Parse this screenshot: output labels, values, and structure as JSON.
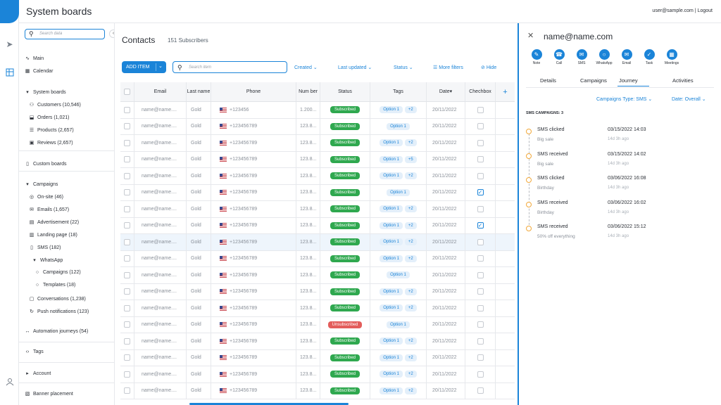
{
  "app": {
    "title": "System boards",
    "user": "user@sample.com | Logout"
  },
  "sidebar": {
    "search_placeholder": "Search data",
    "items": [
      {
        "label": "Main",
        "icon": "pulse-icon"
      },
      {
        "label": "Calendar",
        "icon": "calendar-icon"
      },
      {
        "label": "System boards",
        "icon": "caret-down-icon"
      },
      {
        "label": "Customers (10,546)",
        "icon": "users-icon"
      },
      {
        "label": "Orders (1,021)",
        "icon": "cart-icon"
      },
      {
        "label": "Products (2,657)",
        "icon": "list-icon"
      },
      {
        "label": "Reviews (2,657)",
        "icon": "review-icon"
      },
      {
        "label": "Custom boards",
        "icon": "board-icon"
      },
      {
        "label": "Campaigns",
        "icon": "caret-down-icon"
      },
      {
        "label": "On-site (46)",
        "icon": "target-icon"
      },
      {
        "label": "Emails (1,657)",
        "icon": "mail-icon"
      },
      {
        "label": "Advertisement (22)",
        "icon": "ad-icon"
      },
      {
        "label": "Landing page (18)",
        "icon": "page-icon"
      },
      {
        "label": "SMS (182)",
        "icon": "phone-icon"
      },
      {
        "label": "WhatsApp",
        "icon": "caret-down-icon"
      },
      {
        "label": "Campaigns (122)",
        "icon": "whatsapp-icon"
      },
      {
        "label": "Templates (18)",
        "icon": "whatsapp-icon"
      },
      {
        "label": "Conversations (1,238)",
        "icon": "chat-icon"
      },
      {
        "label": "Push notifications (123)",
        "icon": "push-icon"
      },
      {
        "label": "Automation journeys (54)",
        "icon": "flow-icon"
      },
      {
        "label": "Tags",
        "icon": "code-icon"
      },
      {
        "label": "Account",
        "icon": "caret-right-icon"
      },
      {
        "label": "Banner placement",
        "icon": "book-icon"
      }
    ]
  },
  "main": {
    "title": "Contacts",
    "subscribers": "151 Subscribers",
    "add_item": "ADD ITEM",
    "search_placeholder": "Search item",
    "filters": {
      "created": "Created",
      "last_updated": "Last updated",
      "status": "Status",
      "more": "More filters",
      "hide": "Hide"
    },
    "columns": [
      "Email",
      "Last name",
      "Phone",
      "Num ber",
      "Status",
      "Tags",
      "Date",
      "Chechbox"
    ],
    "rows": [
      {
        "email": "name@name....",
        "last": "Gold",
        "phone": "+123456",
        "number": "1.200...",
        "status": "Subscribed",
        "tags": [
          "Option 1",
          "+2"
        ],
        "date": "20/11/2022",
        "checked": false
      },
      {
        "email": "name@name....",
        "last": "Gold",
        "phone": "+123456789",
        "number": "123.8...",
        "status": "Subscribed",
        "tags": [
          "Option 1"
        ],
        "date": "20/11/2022",
        "checked": false
      },
      {
        "email": "name@name....",
        "last": "Gold",
        "phone": "+123456789",
        "number": "123.8...",
        "status": "Subscribed",
        "tags": [
          "Option 1",
          "+2"
        ],
        "date": "20/11/2022",
        "checked": false
      },
      {
        "email": "name@name....",
        "last": "Gold",
        "phone": "+123456789",
        "number": "123.8...",
        "status": "Subscribed",
        "tags": [
          "Option 1",
          "+5"
        ],
        "date": "20/11/2022",
        "checked": false
      },
      {
        "email": "name@name....",
        "last": "Gold",
        "phone": "+123456789",
        "number": "123.8...",
        "status": "Subscribed",
        "tags": [
          "Option 1",
          "+2"
        ],
        "date": "20/11/2022",
        "checked": false
      },
      {
        "email": "name@name....",
        "last": "Gold",
        "phone": "+123456789",
        "number": "123.8...",
        "status": "Subscribed",
        "tags": [
          "Option 1"
        ],
        "date": "20/11/2022",
        "checked": true
      },
      {
        "email": "name@name....",
        "last": "Gold",
        "phone": "+123456789",
        "number": "123.8...",
        "status": "Subscribed",
        "tags": [
          "Option 1",
          "+2"
        ],
        "date": "20/11/2022",
        "checked": false
      },
      {
        "email": "name@name....",
        "last": "Gold",
        "phone": "+123456789",
        "number": "123.8...",
        "status": "Subscribed",
        "tags": [
          "Option 1",
          "+2"
        ],
        "date": "20/11/2022",
        "checked": true
      },
      {
        "email": "name@name....",
        "last": "Gold",
        "phone": "+123456789",
        "number": "123.8...",
        "status": "Subscribed",
        "tags": [
          "Option 1",
          "+2"
        ],
        "date": "20/11/2022",
        "checked": false
      },
      {
        "email": "name@name....",
        "last": "Gold",
        "phone": "+123456789",
        "number": "123.8...",
        "status": "Subscribed",
        "tags": [
          "Option 1",
          "+2"
        ],
        "date": "20/11/2022",
        "checked": false
      },
      {
        "email": "name@name....",
        "last": "Gold",
        "phone": "+123456789",
        "number": "123.8...",
        "status": "Subscribed",
        "tags": [
          "Option 1"
        ],
        "date": "20/11/2022",
        "checked": false
      },
      {
        "email": "name@name....",
        "last": "Gold",
        "phone": "+123456789",
        "number": "123.8...",
        "status": "Subscribed",
        "tags": [
          "Option 1",
          "+2"
        ],
        "date": "20/11/2022",
        "checked": false
      },
      {
        "email": "name@name....",
        "last": "Gold",
        "phone": "+123456789",
        "number": "123.8...",
        "status": "Subscribed",
        "tags": [
          "Option 1",
          "+2"
        ],
        "date": "20/11/2022",
        "checked": false
      },
      {
        "email": "name@name....",
        "last": "Gold",
        "phone": "+123456789",
        "number": "123.8...",
        "status": "Unsubscribed",
        "tags": [
          "Option 1"
        ],
        "date": "20/11/2022",
        "checked": false
      },
      {
        "email": "name@name....",
        "last": "Gold",
        "phone": "+123456789",
        "number": "123.8...",
        "status": "Subscribed",
        "tags": [
          "Option 1",
          "+2"
        ],
        "date": "20/11/2022",
        "checked": false
      },
      {
        "email": "name@name....",
        "last": "Gold",
        "phone": "+123456789",
        "number": "123.8...",
        "status": "Subscribed",
        "tags": [
          "Option 1",
          "+2"
        ],
        "date": "20/11/2022",
        "checked": false
      },
      {
        "email": "name@name....",
        "last": "Gold",
        "phone": "+123456789",
        "number": "123.8...",
        "status": "Subscribed",
        "tags": [
          "Option 1",
          "+2"
        ],
        "date": "20/11/2022",
        "checked": false
      },
      {
        "email": "name@name....",
        "last": "Gold",
        "phone": "+123456789",
        "number": "123.8...",
        "status": "Subscribed",
        "tags": [
          "Option 1",
          "+2"
        ],
        "date": "20/11/2022",
        "checked": false
      }
    ]
  },
  "panel": {
    "name": "name@name.com",
    "actions": [
      {
        "label": "Note",
        "icon": "note-icon"
      },
      {
        "label": "Call",
        "icon": "call-icon"
      },
      {
        "label": "SMS",
        "icon": "sms-icon"
      },
      {
        "label": "WhatsApp",
        "icon": "whatsapp-icon"
      },
      {
        "label": "Email",
        "icon": "email-icon"
      },
      {
        "label": "Task",
        "icon": "task-icon"
      },
      {
        "label": "Meetings",
        "icon": "meetings-icon"
      }
    ],
    "tabs": [
      "Details",
      "Campaigns",
      "Journey",
      "Activities"
    ],
    "active_tab": "Journey",
    "filter_type": "Campaigns Type: SMS",
    "filter_date": "Date: Overall",
    "section": "SMS CAMPAIGNS: 3",
    "events": [
      {
        "title": "SMS clicked",
        "sub": "Big sale",
        "date": "03/15/2022 14:03",
        "ago": "14d 3h ago"
      },
      {
        "title": "SMS received",
        "sub": "Big sale",
        "date": "03/15/2022 14:02",
        "ago": "14d 3h ago"
      },
      {
        "title": "SMS clicked",
        "sub": "Birthday",
        "date": "03/06/2022 16:08",
        "ago": "14d 3h ago"
      },
      {
        "title": "SMS received",
        "sub": "Birthday",
        "date": "03/06/2022 16:02",
        "ago": "14d 3h ago"
      },
      {
        "title": "SMS received",
        "sub": "50% off everything",
        "date": "03/06/2022 15:12",
        "ago": "14d 3h ago"
      }
    ]
  }
}
